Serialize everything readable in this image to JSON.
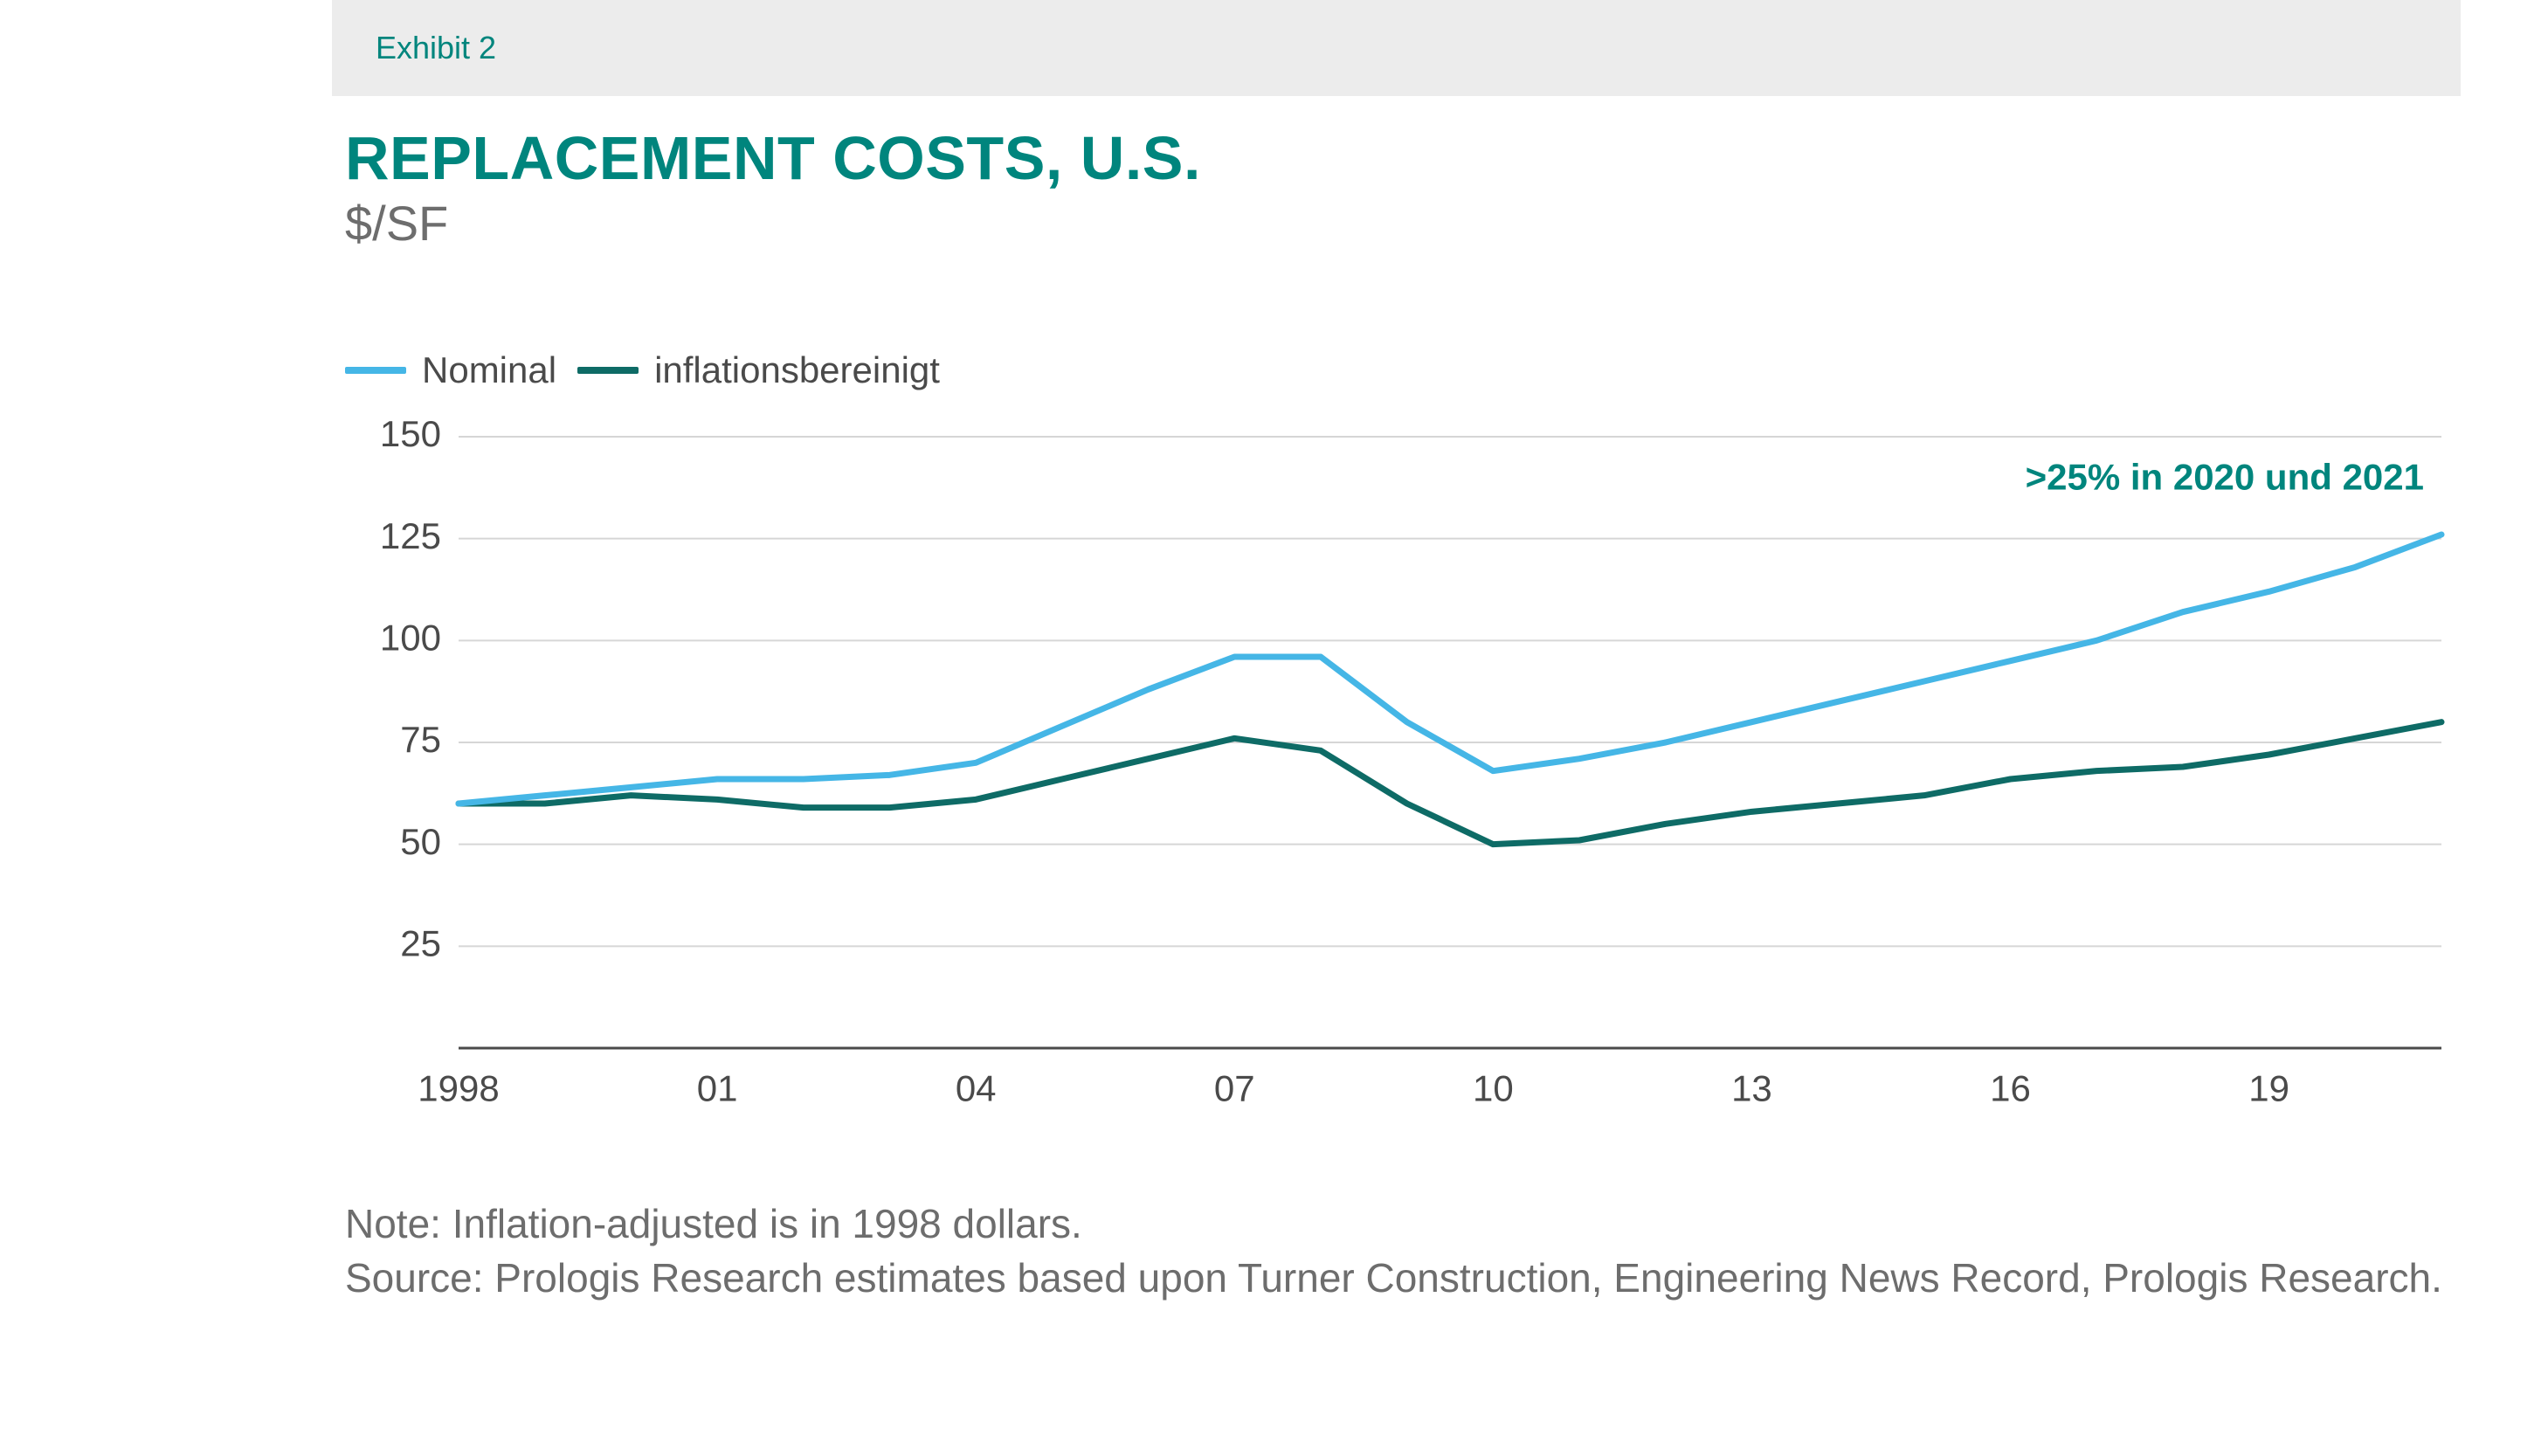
{
  "exhibit_label": "Exhibit 2",
  "title": "REPLACEMENT COSTS, U.S.",
  "subtitle": "$/SF",
  "legend": {
    "nominal": "Nominal",
    "adjusted": "inflationsbereinigt"
  },
  "annotation": ">25% in 2020 und 2021",
  "note_line1": "Note: Inflation-adjusted is in 1998 dollars.",
  "note_line2": "Source: Prologis Research estimates based upon Turner Construction, Engineering News Record, Prologis Research.",
  "chart": {
    "type": "line",
    "background_color": "#ffffff",
    "grid_color": "#d6d6d6",
    "axis_color": "#4a4a4a",
    "label_color": "#4a4a4a",
    "title_color": "#00857d",
    "annotation_color": "#00857d",
    "label_fontsize": 42,
    "line_width": 7,
    "x_years": [
      1998,
      1999,
      2000,
      2001,
      2002,
      2003,
      2004,
      2005,
      2006,
      2007,
      2008,
      2009,
      2010,
      2011,
      2012,
      2013,
      2014,
      2015,
      2016,
      2017,
      2018,
      2019,
      2020,
      2021
    ],
    "x_tick_years": [
      1998,
      2001,
      2004,
      2007,
      2010,
      2013,
      2016,
      2019
    ],
    "x_tick_labels": [
      "1998",
      "01",
      "04",
      "07",
      "10",
      "13",
      "16",
      "19"
    ],
    "ylim": [
      0,
      150
    ],
    "y_ticks": [
      25,
      50,
      75,
      100,
      125,
      150
    ],
    "series": {
      "nominal": {
        "color": "#45b6e6",
        "values": [
          60,
          62,
          64,
          66,
          66,
          67,
          70,
          79,
          88,
          96,
          96,
          80,
          68,
          71,
          75,
          80,
          85,
          90,
          95,
          100,
          107,
          112,
          118,
          126
        ]
      },
      "adjusted": {
        "color": "#0e6b66",
        "values": [
          60,
          60,
          62,
          61,
          59,
          59,
          61,
          66,
          71,
          76,
          73,
          60,
          50,
          51,
          55,
          58,
          60,
          62,
          66,
          68,
          69,
          72,
          76,
          80
        ]
      }
    }
  }
}
